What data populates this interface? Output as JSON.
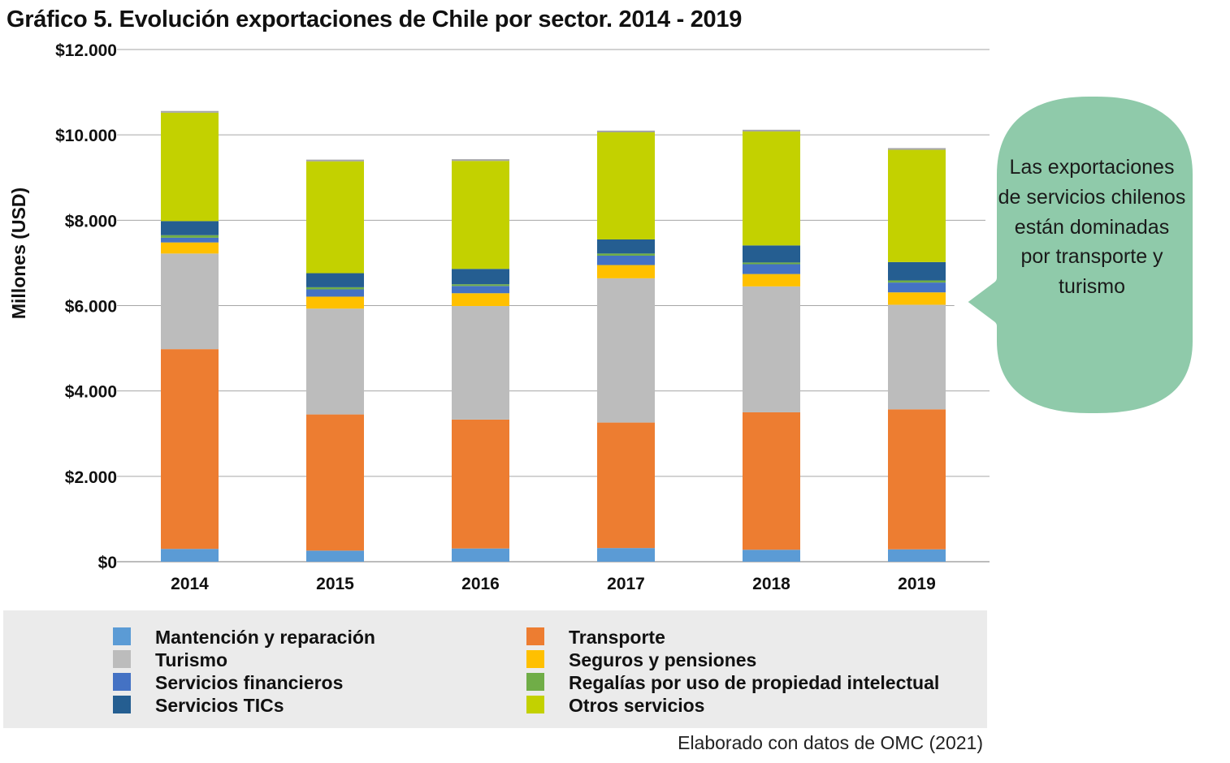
{
  "title": "Gráfico 5. Evolución exportaciones de Chile por sector. 2014 - 2019",
  "source": "Elaborado con datos de OMC (2021)",
  "callout": "Las exportaciones de servicios chilenos están dominadas por transporte y turismo",
  "colors": {
    "callout_fill": "#8fcaaa",
    "gridline": "#a6a6a6",
    "legend_bg": "#ebebeb"
  },
  "chart_data": {
    "type": "bar",
    "stacked": true,
    "title": "Gráfico 5. Evolución exportaciones de Chile por sector. 2014 - 2019",
    "xlabel": "",
    "ylabel": "Millones (USD)",
    "ylim": [
      0,
      12000
    ],
    "y_ticks": [
      0,
      2000,
      4000,
      6000,
      8000,
      10000,
      12000
    ],
    "y_tick_labels": [
      "$0",
      "$2.000",
      "$4.000",
      "$6.000",
      "$8.000",
      "$10.000",
      "$12.000"
    ],
    "grid": true,
    "legend_position": "bottom",
    "categories": [
      "2014",
      "2015",
      "2016",
      "2017",
      "2018",
      "2019"
    ],
    "series": [
      {
        "name": "Mantención y reparación",
        "color": "#5b9bd5",
        "values": [
          300,
          260,
          310,
          320,
          280,
          290
        ]
      },
      {
        "name": "Transporte",
        "color": "#ed7d31",
        "values": [
          4680,
          3190,
          3020,
          2940,
          3220,
          3280
        ]
      },
      {
        "name": "Turismo",
        "color": "#bcbcbc",
        "values": [
          2240,
          2480,
          2660,
          3380,
          2950,
          2450
        ]
      },
      {
        "name": "Seguros y pensiones",
        "color": "#ffc000",
        "values": [
          260,
          280,
          300,
          310,
          290,
          290
        ]
      },
      {
        "name": "Servicios financieros",
        "color": "#4472c4",
        "values": [
          110,
          170,
          170,
          220,
          230,
          230
        ]
      },
      {
        "name": "Regalías por uso de propiedad intelectual",
        "color": "#70ad47",
        "values": [
          60,
          50,
          40,
          50,
          40,
          50
        ]
      },
      {
        "name": "Servicios TICs",
        "color": "#255e91",
        "values": [
          330,
          330,
          360,
          330,
          400,
          430
        ]
      },
      {
        "name": "Otros servicios",
        "color": "#c3d100",
        "values": [
          2540,
          2620,
          2530,
          2510,
          2670,
          2630
        ]
      },
      {
        "name": "",
        "color": "#a5a5a5",
        "values": [
          40,
          40,
          40,
          40,
          40,
          40
        ]
      }
    ]
  }
}
